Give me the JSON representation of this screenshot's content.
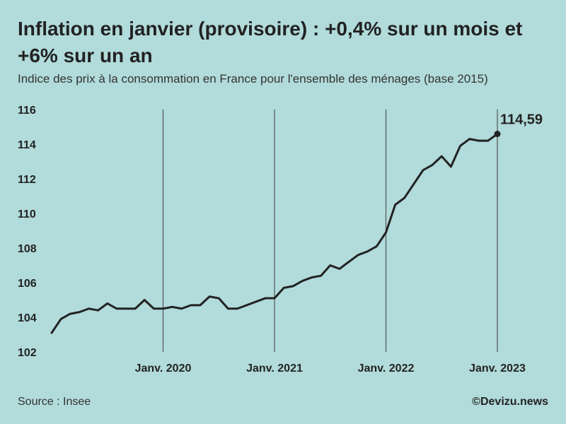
{
  "header": {
    "title": "Inflation en janvier (provisoire) : +0,4% sur un mois et +6% sur un an",
    "subtitle": "Indice des prix à la consommation en France pour l'ensemble des ménages (base 2015)"
  },
  "footer": {
    "source": "Source : Insee",
    "credit": "©Devizu.news"
  },
  "colors": {
    "background": "#b2dbdb",
    "line": "#222222",
    "gridline": "#555555"
  },
  "chart_data": {
    "type": "line",
    "title": "Inflation en janvier (provisoire) : +0,4% sur un mois et +6% sur un an",
    "subtitle": "Indice des prix à la consommation en France pour l'ensemble des ménages (base 2015)",
    "xlabel": "",
    "ylabel": "",
    "ylim": [
      102,
      116
    ],
    "yticks": [
      102,
      104,
      106,
      108,
      110,
      112,
      114,
      116
    ],
    "xlim": [
      0,
      49
    ],
    "grid": "vertical lines at each January",
    "xticks": [
      {
        "index": 12,
        "label": "Janv. 2020"
      },
      {
        "index": 24,
        "label": "Janv. 2021"
      },
      {
        "index": 36,
        "label": "Janv. 2022"
      },
      {
        "index": 48,
        "label": "Janv. 2023"
      }
    ],
    "series": [
      {
        "name": "Indice des prix à la consommation",
        "start": "Janv. 2019",
        "values": [
          103.1,
          103.9,
          104.2,
          104.3,
          104.5,
          104.4,
          104.8,
          104.5,
          104.5,
          104.5,
          105.0,
          104.5,
          104.5,
          104.6,
          104.5,
          104.7,
          104.7,
          105.2,
          105.1,
          104.5,
          104.5,
          104.7,
          104.9,
          105.1,
          105.1,
          105.7,
          105.8,
          106.1,
          106.3,
          106.4,
          107.0,
          106.8,
          107.2,
          107.6,
          107.8,
          108.1,
          108.9,
          110.5,
          110.9,
          111.7,
          112.5,
          112.8,
          113.3,
          112.7,
          113.9,
          114.3,
          114.2,
          114.2,
          114.59
        ]
      }
    ],
    "annotations": [
      {
        "index": 48,
        "value": 114.59,
        "label": "114,59"
      }
    ]
  }
}
